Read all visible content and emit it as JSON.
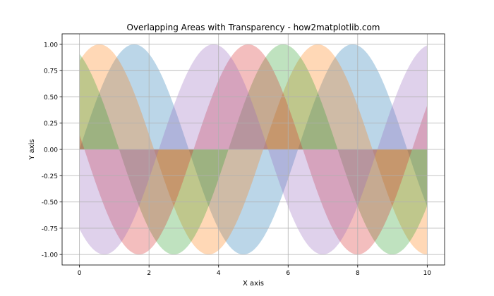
{
  "chart_data": {
    "type": "area",
    "title": "Overlapping Areas with Transparency - how2matplotlib.com",
    "xlabel": "X axis",
    "ylabel": "Y axis",
    "xlim": [
      -0.5,
      10.5
    ],
    "ylim": [
      -1.1,
      1.1
    ],
    "xticks": [
      0,
      2,
      4,
      6,
      8,
      10
    ],
    "xtick_labels": [
      "0",
      "2",
      "4",
      "6",
      "8",
      "10"
    ],
    "yticks": [
      1.0,
      0.75,
      0.5,
      0.25,
      0.0,
      -0.25,
      -0.5,
      -0.75,
      -1.0
    ],
    "ytick_labels": [
      "1.00",
      "0.75",
      "0.50",
      "0.25",
      "0.00",
      "-0.25",
      "-0.50",
      "-0.75",
      "-1.00"
    ],
    "grid": true,
    "fill_between_zero": true,
    "opacity": 0.3,
    "series": [
      {
        "function": "sin(x)",
        "color": "#1f77b4"
      },
      {
        "function": "sin(x + 1)",
        "color": "#ff7f0e"
      },
      {
        "function": "sin(x + 2)",
        "color": "#2ca02c"
      },
      {
        "function": "sin(x + 3)",
        "color": "#d62728"
      },
      {
        "function": "sin(x + 4)",
        "color": "#9467bd"
      }
    ],
    "x_range": [
      0,
      10
    ]
  }
}
